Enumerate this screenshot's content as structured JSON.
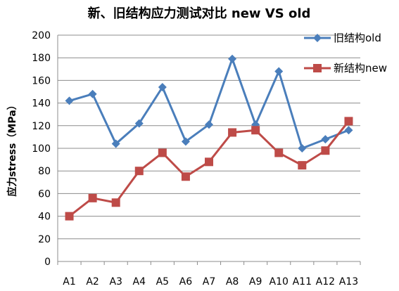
{
  "chart_data": {
    "type": "line",
    "title": "新、旧结构应力测试对比 new VS old",
    "xlabel": "",
    "ylabel": "应力stress（MPa）",
    "categories": [
      "A1",
      "A2",
      "A3",
      "A4",
      "A5",
      "A6",
      "A7",
      "A8",
      "A9",
      "A10",
      "A11",
      "A12",
      "A13"
    ],
    "ylim": [
      0,
      200
    ],
    "yticks": [
      0,
      20,
      40,
      60,
      80,
      100,
      120,
      140,
      160,
      180,
      200
    ],
    "grid": true,
    "legend_position": "top-right",
    "series": [
      {
        "name": "旧结构old",
        "color": "#4a7ebb",
        "marker": "diamond",
        "values": [
          142,
          148,
          104,
          122,
          154,
          106,
          121,
          179,
          121,
          168,
          100,
          108,
          116
        ]
      },
      {
        "name": "新结构new",
        "color": "#be4b48",
        "marker": "square",
        "values": [
          40,
          56,
          52,
          80,
          96,
          75,
          88,
          114,
          116,
          96,
          85,
          98,
          124
        ]
      }
    ]
  }
}
